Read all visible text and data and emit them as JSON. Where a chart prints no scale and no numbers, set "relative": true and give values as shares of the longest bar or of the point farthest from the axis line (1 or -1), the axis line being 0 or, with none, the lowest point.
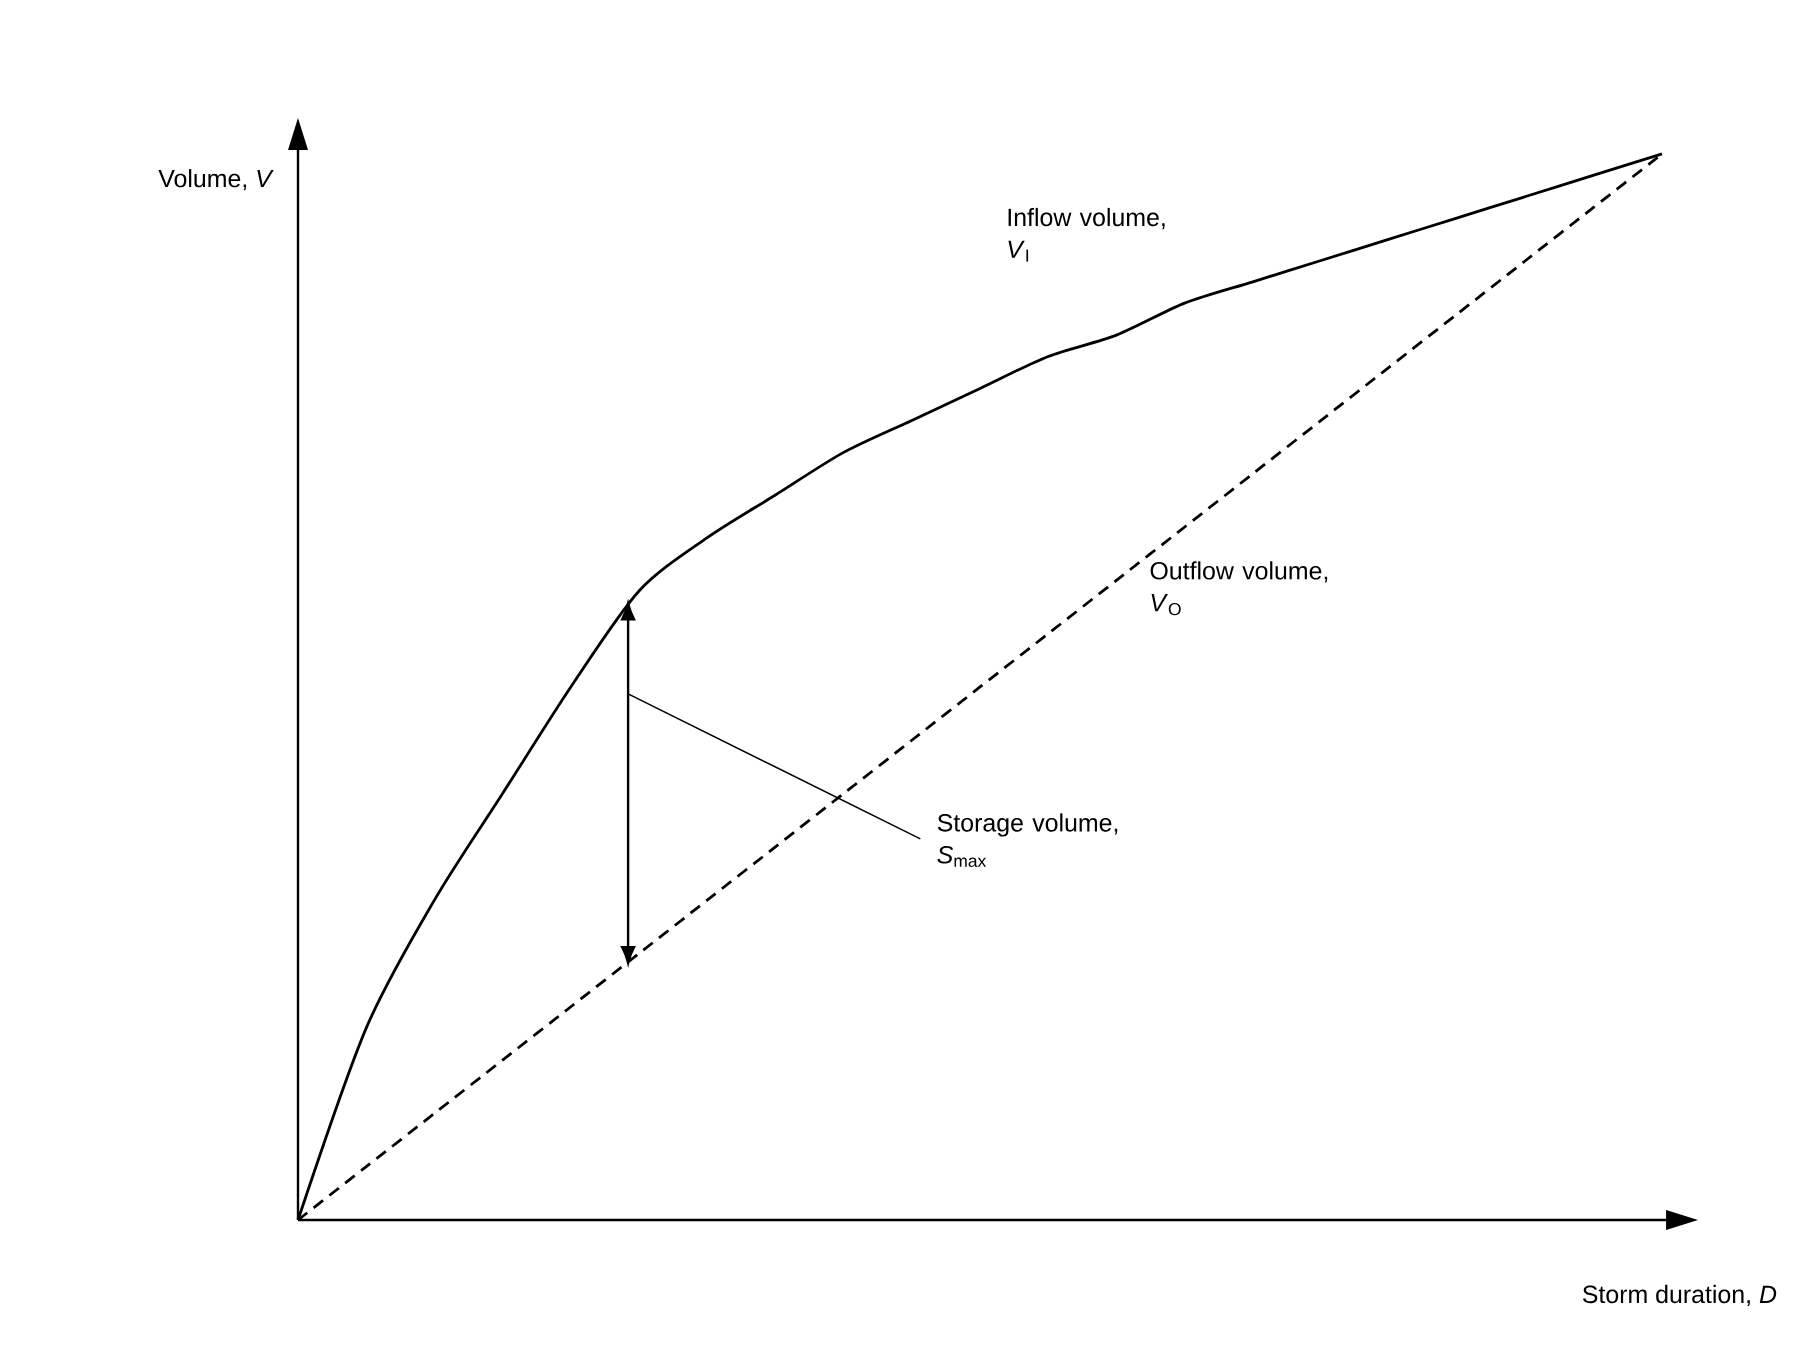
{
  "chart_data": {
    "type": "line",
    "relative": true,
    "xlabel": "Storm duration, *D*",
    "ylabel": "Volume, *V*",
    "categories": [
      null,
      null,
      null,
      null,
      null,
      null,
      null,
      null,
      null,
      null,
      null,
      null,
      null,
      null,
      null,
      null,
      null,
      null,
      null,
      null,
      null
    ],
    "series": [
      {
        "name": "Inflow volume, *V*$_{I}$",
        "color": "#000000",
        "line_style": "solid",
        "values": [
          0,
          0.18,
          0.3,
          0.4,
          0.5,
          0.59,
          0.64,
          0.68,
          0.72,
          0.75,
          0.78,
          0.81,
          0.83,
          0.86,
          0.88,
          0.9,
          0.92,
          0.94,
          0.96,
          0.98,
          1.0
        ]
      },
      {
        "name": "Outflow volume, *V*$_{O}$",
        "color": "#000000",
        "line_style": "dashed",
        "values": [
          0,
          0.05,
          0.1,
          0.15,
          0.2,
          0.25,
          0.3,
          0.35,
          0.4,
          0.45,
          0.5,
          0.55,
          0.6,
          0.65,
          0.7,
          0.75,
          0.8,
          0.85,
          0.9,
          0.95,
          1.0
        ]
      }
    ],
    "annotations": [
      "Storage volume, *S*$_{max}$"
    ],
    "legend": false,
    "marker": "none"
  }
}
